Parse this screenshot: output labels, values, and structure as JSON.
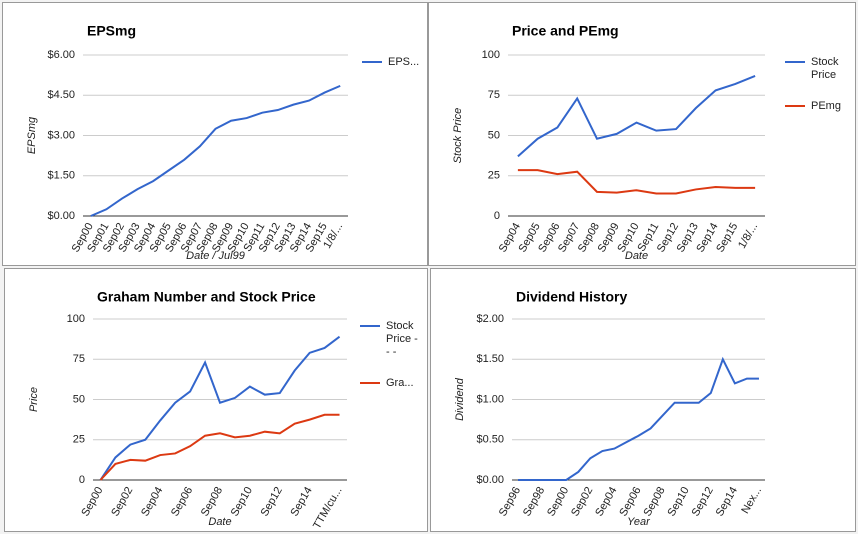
{
  "chart_data": [
    {
      "type": "line",
      "title": "EPSmg",
      "y_label": "EPSmg",
      "x_label": "Date / Jul99",
      "categories": [
        "Sep00",
        "Sep01",
        "Sep02",
        "Sep03",
        "Sep04",
        "Sep05",
        "Sep06",
        "Sep07",
        "Sep08",
        "Sep09",
        "Sep10",
        "Sep11",
        "Sep12",
        "Sep13",
        "Sep14",
        "Sep15",
        "1/8/..."
      ],
      "series": [
        {
          "name": "EPS...",
          "color": "#3366cc",
          "values": [
            0,
            0.25,
            0.65,
            1.0,
            1.3,
            1.7,
            2.1,
            2.6,
            3.25,
            3.55,
            3.65,
            3.85,
            3.95,
            4.15,
            4.3,
            4.6,
            4.85
          ]
        }
      ],
      "ylim": [
        0,
        6
      ],
      "yticks": [
        {
          "value": 0,
          "label": "$0.00"
        },
        {
          "value": 1.5,
          "label": "$1.50"
        },
        {
          "value": 3,
          "label": "$3.00"
        },
        {
          "value": 4.5,
          "label": "$4.50"
        },
        {
          "value": 6,
          "label": "$6.00"
        }
      ],
      "grid": true,
      "legend": "right"
    },
    {
      "type": "line",
      "title": "Price and PEmg",
      "y_label": "Stock Price",
      "x_label": "Date",
      "categories": [
        "Sep04",
        "Sep05",
        "Sep06",
        "Sep07",
        "Sep08",
        "Sep09",
        "Sep10",
        "Sep11",
        "Sep12",
        "Sep13",
        "Sep14",
        "Sep15",
        "1/8/..."
      ],
      "series": [
        {
          "name": "Stock Price",
          "color": "#3366cc",
          "values": [
            37,
            48,
            55,
            73,
            48,
            51,
            58,
            53,
            54,
            67,
            78,
            82,
            87
          ]
        },
        {
          "name": "PEmg",
          "color": "#dc3912",
          "values": [
            28.5,
            28.5,
            26,
            27.5,
            15,
            14.5,
            16,
            14,
            14,
            16.5,
            18,
            17.5,
            17.5
          ]
        }
      ],
      "ylim": [
        0,
        100
      ],
      "yticks": [
        0,
        25,
        50,
        75,
        100
      ],
      "grid": true,
      "legend": "right"
    },
    {
      "type": "line",
      "title": "Graham Number and Stock Price",
      "y_label": "Price",
      "x_label": "Date",
      "categories": [
        "Sep00",
        null,
        "Sep02",
        null,
        "Sep04",
        null,
        "Sep06",
        null,
        "Sep08",
        null,
        "Sep10",
        null,
        "Sep12",
        null,
        "Sep14",
        null,
        "TTM/cu..."
      ],
      "series": [
        {
          "name": "Stock Price - - -",
          "color": "#3366cc",
          "values": [
            0,
            14,
            22,
            25,
            37,
            48,
            55,
            73,
            48,
            51,
            58,
            53,
            54,
            68,
            79,
            82,
            89
          ]
        },
        {
          "name": "Gra...",
          "color": "#dc3912",
          "values": [
            0,
            10,
            12.5,
            12,
            15.5,
            16.5,
            21,
            27.5,
            29,
            26.5,
            27.5,
            30,
            29,
            35,
            37.5,
            40.5,
            40.5
          ]
        }
      ],
      "ylim": [
        0,
        100
      ],
      "yticks": [
        0,
        25,
        50,
        75,
        100
      ],
      "grid": true,
      "legend": "right"
    },
    {
      "type": "line",
      "title": "Dividend History",
      "y_label": "Dividend",
      "x_label": "Year",
      "categories": [
        "Sep96",
        null,
        "Sep98",
        null,
        "Sep00",
        null,
        "Sep02",
        null,
        "Sep04",
        null,
        "Sep06",
        null,
        "Sep08",
        null,
        "Sep10",
        null,
        "Sep12",
        null,
        "Sep14",
        null,
        "Nex..."
      ],
      "series": [
        {
          "color": "#3366cc",
          "values": [
            0,
            0,
            0,
            0,
            0,
            0.1,
            0.27,
            0.36,
            0.39,
            0.47,
            0.55,
            0.64,
            0.8,
            0.96,
            0.96,
            0.96,
            1.08,
            1.5,
            1.2,
            1.26,
            1.26
          ]
        }
      ],
      "ylim": [
        0,
        2
      ],
      "yticks": [
        {
          "value": 0,
          "label": "$0.00"
        },
        {
          "value": 0.5,
          "label": "$0.50"
        },
        {
          "value": 1,
          "label": "$1.00"
        },
        {
          "value": 1.5,
          "label": "$1.50"
        },
        {
          "value": 2,
          "label": "$2.00"
        }
      ],
      "grid": true
    }
  ]
}
